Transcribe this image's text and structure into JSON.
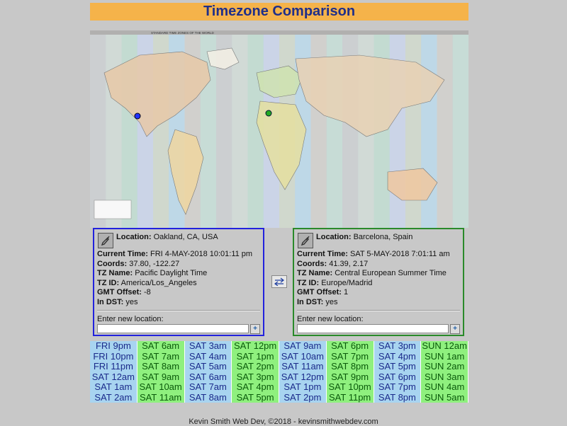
{
  "app": {
    "title": "Timezone Comparison"
  },
  "map": {
    "caption": "STANDARD TIME ZONES OF THE WORLD"
  },
  "left": {
    "location_label": "Location:",
    "location": "Oakland, CA, USA",
    "current_time_label": "Current Time:",
    "current_time": "FRI 4-MAY-2018 10:01:11 pm",
    "coords_label": "Coords:",
    "coords": "37.80, -122.27",
    "tz_name_label": "TZ Name:",
    "tz_name": "Pacific Daylight Time",
    "tz_id_label": "TZ ID:",
    "tz_id": "America/Los_Angeles",
    "gmt_label": "GMT Offset:",
    "gmt": "-8",
    "dst_label": "In DST:",
    "dst": "yes",
    "enter_label": "Enter new location:",
    "input_value": "",
    "add_label": "+"
  },
  "right": {
    "location_label": "Location:",
    "location": "Barcelona, Spain",
    "current_time_label": "Current Time:",
    "current_time": "SAT 5-MAY-2018 7:01:11 am",
    "coords_label": "Coords:",
    "coords": "41.39, 2.17",
    "tz_name_label": "TZ Name:",
    "tz_name": "Central European Summer Time",
    "tz_id_label": "TZ ID:",
    "tz_id": "Europe/Madrid",
    "gmt_label": "GMT Offset:",
    "gmt": "1",
    "dst_label": "In DST:",
    "dst": "yes",
    "enter_label": "Enter new location:",
    "input_value": "",
    "add_label": "+"
  },
  "swap": {
    "icon": "swap-arrows-icon"
  },
  "grid": [
    [
      "FRI 9pm",
      "SAT 6am",
      "SAT 3am",
      "SAT 12pm",
      "SAT 9am",
      "SAT 6pm",
      "SAT 3pm",
      "SUN 12am"
    ],
    [
      "FRI 10pm",
      "SAT 7am",
      "SAT 4am",
      "SAT 1pm",
      "SAT 10am",
      "SAT 7pm",
      "SAT 4pm",
      "SUN 1am"
    ],
    [
      "FRI 11pm",
      "SAT 8am",
      "SAT 5am",
      "SAT 2pm",
      "SAT 11am",
      "SAT 8pm",
      "SAT 5pm",
      "SUN 2am"
    ],
    [
      "SAT 12am",
      "SAT 9am",
      "SAT 6am",
      "SAT 3pm",
      "SAT 12pm",
      "SAT 9pm",
      "SAT 6pm",
      "SUN 3am"
    ],
    [
      "SAT 1am",
      "SAT 10am",
      "SAT 7am",
      "SAT 4pm",
      "SAT 1pm",
      "SAT 10pm",
      "SAT 7pm",
      "SUN 4am"
    ],
    [
      "SAT 2am",
      "SAT 11am",
      "SAT 8am",
      "SAT 5pm",
      "SAT 2pm",
      "SAT 11pm",
      "SAT 8pm",
      "SUN 5am"
    ]
  ],
  "footer": "Kevin Smith Web Dev, ©2018 - kevinsmithwebdev.com",
  "colors": {
    "left_border": "#2222dd",
    "right_border": "#2a8a2a",
    "title_bg": "#f5b34a",
    "title_fg": "#1f2f8a"
  }
}
